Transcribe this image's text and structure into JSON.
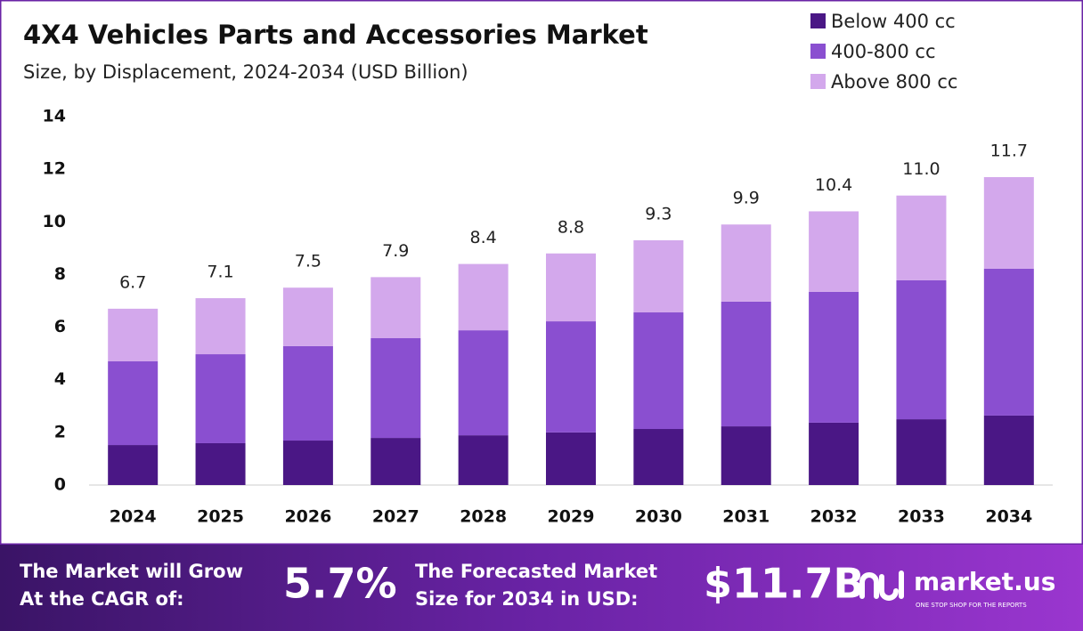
{
  "chart_data": {
    "type": "stacked-bar",
    "title": "4X4 Vehicles Parts and Accessories Market",
    "subtitle": "Size, by Displacement, 2024-2034 (USD Billion)",
    "categories": [
      "2024",
      "2025",
      "2026",
      "2027",
      "2028",
      "2029",
      "2030",
      "2031",
      "2032",
      "2033",
      "2034"
    ],
    "series": [
      {
        "name": "Below 400 cc",
        "color": "#4a1785",
        "values": [
          1.52,
          1.59,
          1.69,
          1.79,
          1.89,
          2.0,
          2.13,
          2.23,
          2.37,
          2.5,
          2.64
        ]
      },
      {
        "name": "400-800 cc",
        "color": "#8a4fd0",
        "values": [
          3.18,
          3.38,
          3.59,
          3.79,
          3.99,
          4.22,
          4.43,
          4.74,
          4.97,
          5.28,
          5.58
        ]
      },
      {
        "name": "Above 800 cc",
        "color": "#d3a8ec",
        "values": [
          2.0,
          2.13,
          2.22,
          2.32,
          2.52,
          2.58,
          2.74,
          2.93,
          3.06,
          3.22,
          3.48
        ]
      }
    ],
    "total_labels": [
      "6.7",
      "7.1",
      "7.5",
      "7.9",
      "8.4",
      "8.8",
      "9.3",
      "9.9",
      "10.4",
      "11.0",
      "11.7"
    ],
    "ylim": [
      0,
      14
    ],
    "yticks": [
      0,
      2,
      4,
      6,
      8,
      10,
      12,
      14
    ],
    "grid": false,
    "legend": "top-right"
  },
  "footer": {
    "cagr_label": [
      "The Market will Grow",
      "At the CAGR of:"
    ],
    "cagr": "5.7%",
    "forecast_label": [
      "The Forecasted Market",
      "Size for 2034 in USD:"
    ],
    "forecast": "$11.7B",
    "brand": "market.us",
    "tagline": "ONE STOP SHOP FOR THE REPORTS"
  }
}
